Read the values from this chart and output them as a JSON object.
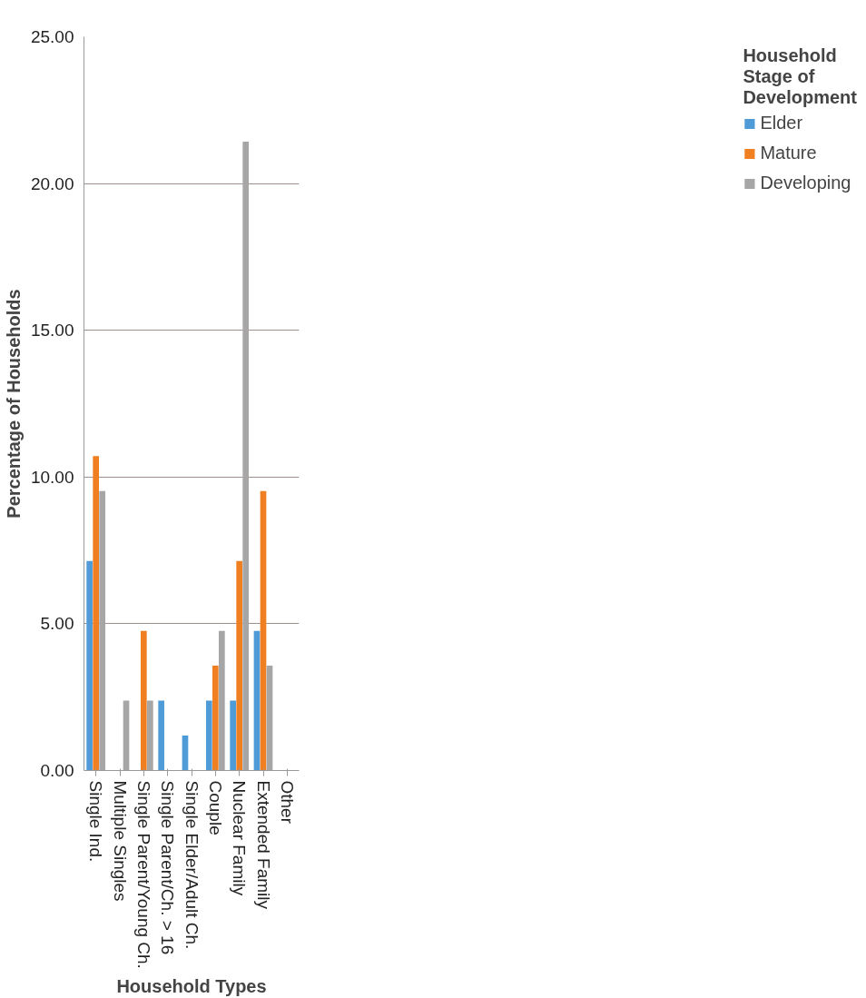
{
  "chart_data": {
    "type": "bar",
    "xlabel": "Household Types",
    "ylabel": "Percentage of Households",
    "legend_title": "Household\nStage of\nDevelopment",
    "categories": [
      "Single Ind.",
      "Multiple Singles",
      "Single Parent/Young Ch.",
      "Single Parent/Ch. > 16",
      "Single Elder/Adult Ch.",
      "Couple",
      "Nuclear Family",
      "Extended Family",
      "Other"
    ],
    "series": [
      {
        "name": "Elder",
        "color": "#4f9bd8",
        "values": [
          7.14,
          0,
          0,
          2.38,
          1.19,
          2.38,
          2.38,
          4.76,
          0
        ]
      },
      {
        "name": "Mature",
        "color": "#f07f22",
        "values": [
          10.71,
          0,
          4.76,
          0,
          0,
          3.57,
          7.14,
          9.52,
          0
        ]
      },
      {
        "name": "Developing",
        "color": "#a6a6a6",
        "values": [
          9.52,
          2.38,
          2.38,
          0,
          0,
          4.76,
          21.43,
          3.57,
          0
        ]
      }
    ],
    "ylim": [
      0,
      25
    ],
    "yticks": [
      {
        "value": 0,
        "label": "0.00"
      },
      {
        "value": 5,
        "label": "5.00"
      },
      {
        "value": 10,
        "label": "10.00"
      },
      {
        "value": 15,
        "label": "15.00"
      },
      {
        "value": 20,
        "label": "20.00"
      },
      {
        "value": 25,
        "label": "25.00"
      }
    ],
    "grid": "y",
    "legend": "right"
  }
}
